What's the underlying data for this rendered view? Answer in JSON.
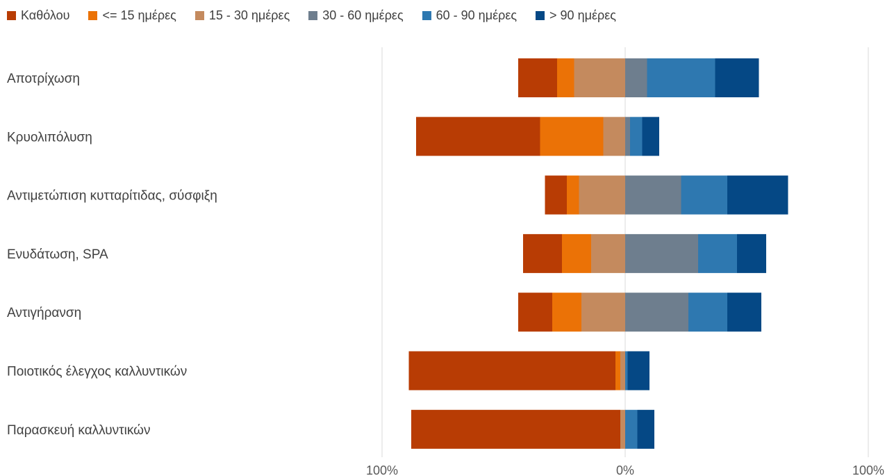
{
  "chart_data": {
    "type": "bar",
    "orientation": "horizontal",
    "stacking": "diverging",
    "categories": [
      "Αποτρίχωση",
      "Κρυολιπόλυση",
      "Αντιμετώπιση κυτταρίτιδας, σύσφιξη",
      "Ενυδάτωση, SPA",
      "Αντιγήρανση",
      "Ποιοτικός έλεγχος καλλυντικών",
      "Παρασκευή καλλυντικών"
    ],
    "series": [
      {
        "name": "Καθόλου",
        "side": "negative",
        "color": "#b83c04",
        "values": [
          16,
          51,
          9,
          16,
          14,
          85,
          86
        ]
      },
      {
        "name": "<= 15 ημέρες",
        "side": "negative",
        "color": "#eb7206",
        "values": [
          7,
          26,
          5,
          12,
          12,
          2,
          0
        ]
      },
      {
        "name": "15 - 30 ημέρες",
        "side": "negative",
        "color": "#c48a5e",
        "values": [
          21,
          9,
          19,
          14,
          18,
          2,
          2
        ]
      },
      {
        "name": "30 - 60 ημέρες",
        "side": "positive",
        "color": "#6e7e8e",
        "values": [
          9,
          2,
          23,
          30,
          26,
          0,
          0
        ]
      },
      {
        "name": "60 - 90 ημέρες",
        "side": "positive",
        "color": "#2e78b0",
        "values": [
          28,
          5,
          19,
          16,
          16,
          1,
          5
        ]
      },
      {
        "name": "> 90 ημέρες",
        "side": "positive",
        "color": "#054885",
        "values": [
          18,
          7,
          25,
          12,
          14,
          9,
          7
        ]
      }
    ],
    "xlim": [
      -100,
      100
    ],
    "xticks": [
      "100%",
      "0%",
      "100%"
    ],
    "unit": "%",
    "legend_position": "top",
    "grid": true
  }
}
